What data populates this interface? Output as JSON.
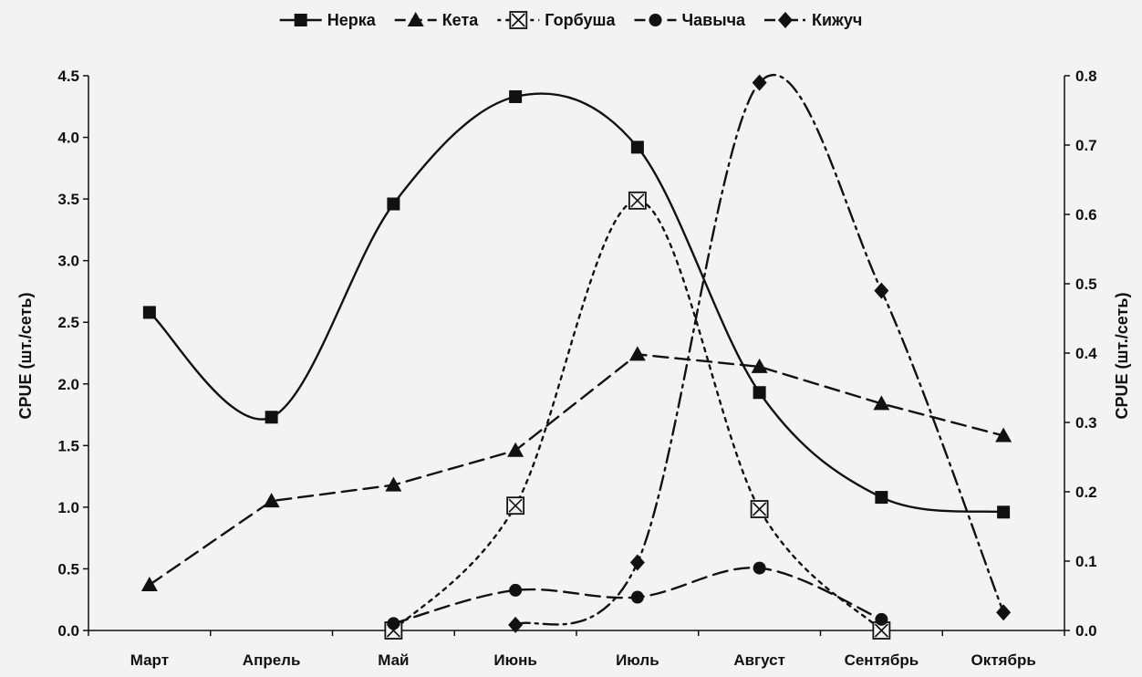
{
  "chart_data": {
    "type": "line",
    "categories": [
      "Март",
      "Апрель",
      "Май",
      "Июнь",
      "Июль",
      "Август",
      "Сентябрь",
      "Октябрь"
    ],
    "ylabel": "CPUE (шт./сеть)",
    "ylabel_right": "CPUE (шт./сеть)",
    "ylim": [
      0,
      4.5
    ],
    "ylim_right": [
      0,
      0.8
    ],
    "y_ticks": [
      "0.0",
      "0.5",
      "1.0",
      "1.5",
      "2.0",
      "2.5",
      "3.0",
      "3.5",
      "4.0",
      "4.5"
    ],
    "y_ticks_right": [
      "0.0",
      "0.1",
      "0.2",
      "0.3",
      "0.4",
      "0.5",
      "0.6",
      "0.7",
      "0.8"
    ],
    "grid": false,
    "legend_position": "top",
    "series": [
      {
        "name": "Нерка",
        "axis": "left",
        "marker": "square",
        "dash": "solid",
        "curve": "smooth",
        "values": [
          2.58,
          1.73,
          3.46,
          4.33,
          3.92,
          1.93,
          1.08,
          0.96
        ]
      },
      {
        "name": "Кета",
        "axis": "left",
        "marker": "triangle",
        "dash": "dashed",
        "curve": "linear",
        "values": [
          0.37,
          1.05,
          1.18,
          1.46,
          2.24,
          2.14,
          1.84,
          1.58
        ]
      },
      {
        "name": "Горбуша",
        "axis": "right",
        "marker": "boxed-x",
        "dash": "dotted",
        "curve": "smooth",
        "values": [
          null,
          null,
          0.0,
          0.18,
          0.62,
          0.175,
          0.0,
          null
        ]
      },
      {
        "name": "Чавыча",
        "axis": "right",
        "marker": "circle",
        "dash": "dashed",
        "curve": "smooth",
        "values": [
          null,
          null,
          0.01,
          0.058,
          0.048,
          0.09,
          0.016,
          null
        ]
      },
      {
        "name": "Кижуч",
        "axis": "right",
        "marker": "diamond",
        "dash": "dashdot",
        "curve": "smooth",
        "values": [
          null,
          null,
          null,
          0.008,
          0.098,
          0.79,
          0.49,
          0.026
        ]
      }
    ]
  },
  "colors": {
    "line": "#111111",
    "background": "#f3f3f3"
  }
}
